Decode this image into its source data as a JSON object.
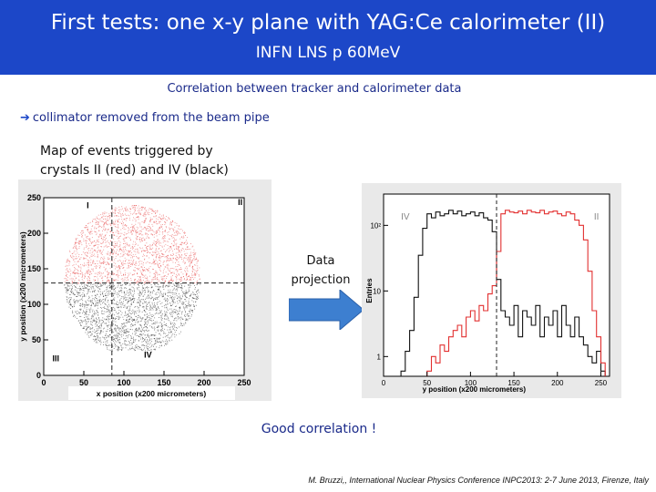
{
  "header": {
    "title": "First tests: one x-y plane with YAG:Ce calorimeter (II)",
    "subtitle": "INFN LNS  p 60MeV"
  },
  "correlation_heading": "Correlation between tracker and calorimeter data",
  "collimator_note": "collimator removed from the beam pipe",
  "arrow_glyph": "➔",
  "map_note": "Map of events triggered by crystals II (red) and IV (black)",
  "projection_label": "Data projection",
  "conclusion": "Good correlation !",
  "reference": "M. Bruzzi,, International Nuclear Physics Conference INPC2013: 2-7 June 2013, Firenze, Italy",
  "colors": {
    "header_bg": "#1c47c8",
    "accent_text": "#1a2a8a",
    "arrow": "#3d7fd0",
    "crystal_II": "#e23030",
    "crystal_IV": "#111111"
  },
  "chart_data": [
    {
      "type": "scatter",
      "title": "",
      "xlabel": "x position (x200 micrometers)",
      "ylabel": "y position (x200 micrometers)",
      "xlim": [
        0,
        250
      ],
      "ylim": [
        0,
        250
      ],
      "xticks": [
        0,
        50,
        100,
        150,
        200,
        250
      ],
      "yticks": [
        0,
        50,
        100,
        150,
        200,
        250
      ],
      "cut_lines": {
        "x": 85,
        "y": 130
      },
      "quadrant_labels": [
        {
          "text": "I",
          "x": 55,
          "y": 235
        },
        {
          "text": "II",
          "x": 245,
          "y": 240
        },
        {
          "text": "III",
          "x": 15,
          "y": 20
        },
        {
          "text": "IV",
          "x": 130,
          "y": 25
        }
      ],
      "series": [
        {
          "name": "II",
          "color": "#e23030",
          "x_range": [
            25,
            195
          ],
          "y_range": [
            130,
            240
          ]
        },
        {
          "name": "IV",
          "color": "#111111",
          "x_range": [
            25,
            195
          ],
          "y_range": [
            35,
            130
          ]
        }
      ]
    },
    {
      "type": "line",
      "title": "",
      "xlabel": "y position (x200 micrometers)",
      "ylabel": "Entries",
      "xlim": [
        0,
        260
      ],
      "y_scale": "log",
      "ylim": [
        0.5,
        300
      ],
      "xticks": [
        0,
        50,
        100,
        150,
        200,
        250
      ],
      "ytick_labels": [
        "1",
        "10",
        "10²"
      ],
      "ytick_values": [
        1,
        10,
        100
      ],
      "cut_line_x": 130,
      "series": [
        {
          "name": "IV",
          "color": "#111111",
          "x": [
            20,
            25,
            30,
            35,
            40,
            45,
            50,
            55,
            60,
            65,
            70,
            75,
            80,
            85,
            90,
            95,
            100,
            105,
            110,
            115,
            120,
            125,
            130,
            135,
            140,
            145,
            150,
            155,
            160,
            165,
            170,
            175,
            180,
            185,
            190,
            195,
            200,
            205,
            210,
            215,
            220,
            225,
            230,
            235,
            240,
            245,
            250
          ],
          "y": [
            0.6,
            1.2,
            2.5,
            8,
            35,
            90,
            150,
            130,
            160,
            140,
            150,
            170,
            150,
            165,
            140,
            150,
            160,
            140,
            155,
            130,
            120,
            80,
            15,
            5,
            4,
            3,
            6,
            2,
            5,
            4,
            3,
            6,
            2,
            4,
            3,
            5,
            2,
            6,
            3,
            2,
            4,
            2,
            1.5,
            1,
            0.8,
            1.2,
            0.6
          ]
        },
        {
          "name": "II",
          "color": "#e23030",
          "x": [
            50,
            55,
            60,
            65,
            70,
            75,
            80,
            85,
            90,
            95,
            100,
            105,
            110,
            115,
            120,
            125,
            130,
            135,
            140,
            145,
            150,
            155,
            160,
            165,
            170,
            175,
            180,
            185,
            190,
            195,
            200,
            205,
            210,
            215,
            220,
            225,
            230,
            235,
            240,
            245,
            250
          ],
          "y": [
            0.6,
            1,
            0.8,
            1.5,
            1.2,
            2,
            2.5,
            3,
            2,
            4,
            5,
            3.5,
            6,
            5,
            9,
            12,
            40,
            150,
            170,
            160,
            155,
            165,
            150,
            170,
            160,
            155,
            170,
            150,
            160,
            165,
            150,
            140,
            160,
            150,
            120,
            100,
            60,
            20,
            5,
            2,
            0.8
          ]
        }
      ]
    }
  ]
}
